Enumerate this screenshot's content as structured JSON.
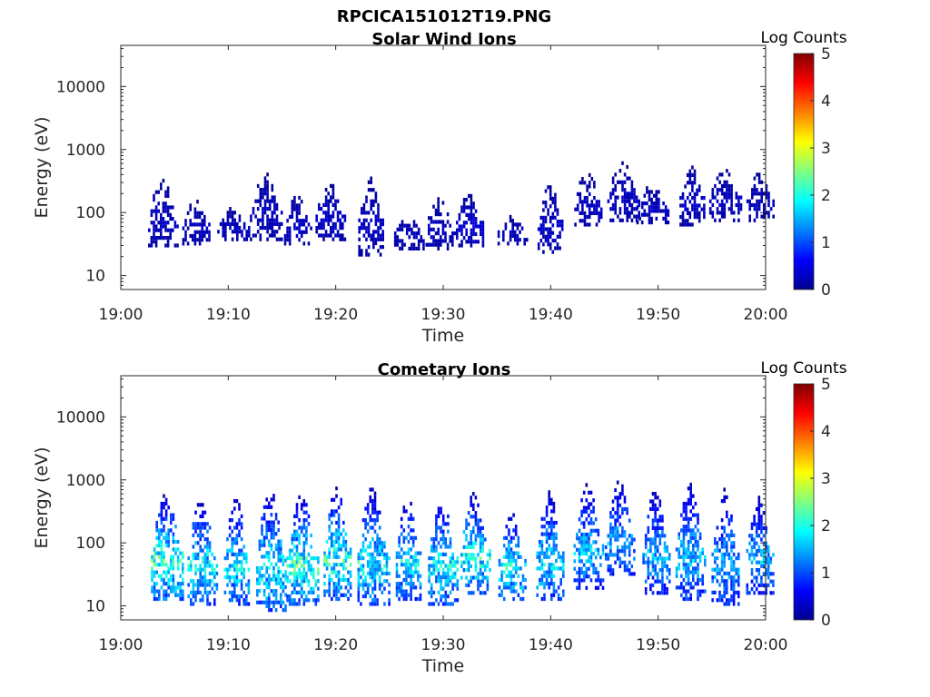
{
  "figure_title": "RPCICA151012T19.PNG",
  "colormap": [
    "#00008f",
    "#0000ff",
    "#0080ff",
    "#00ffff",
    "#80ff80",
    "#ffff00",
    "#ff8000",
    "#ff0000",
    "#800000"
  ],
  "chart_data": [
    {
      "type": "heatmap",
      "title": "Solar Wind Ions",
      "xlabel": "Time",
      "ylabel": "Energy (eV)",
      "x_ticks": [
        "19:00",
        "19:10",
        "19:20",
        "19:30",
        "19:40",
        "19:50",
        "20:00"
      ],
      "xlim": [
        "19:00",
        "20:00"
      ],
      "y_scale": "log",
      "ylim": [
        6,
        45000
      ],
      "y_ticks": [
        "10",
        "100",
        "1000",
        "10000"
      ],
      "colorbar": {
        "label": "Log Counts",
        "range": [
          0,
          5
        ],
        "ticks": [
          "0",
          "1",
          "2",
          "3",
          "4",
          "5"
        ]
      },
      "bursts": [
        {
          "time_min": 4.0,
          "emin": 28,
          "emax": 330,
          "peak_log": 0.3
        },
        {
          "time_min": 7.0,
          "emin": 30,
          "emax": 150,
          "peak_log": 0.3
        },
        {
          "time_min": 10.5,
          "emin": 35,
          "emax": 110,
          "peak_log": 0.3
        },
        {
          "time_min": 13.5,
          "emin": 35,
          "emax": 400,
          "peak_log": 0.3
        },
        {
          "time_min": 16.5,
          "emin": 30,
          "emax": 170,
          "peak_log": 0.35
        },
        {
          "time_min": 19.5,
          "emin": 35,
          "emax": 280,
          "peak_log": 0.35
        },
        {
          "time_min": 23.3,
          "emin": 20,
          "emax": 350,
          "peak_log": 0.3
        },
        {
          "time_min": 26.8,
          "emin": 25,
          "emax": 90,
          "peak_log": 0.3
        },
        {
          "time_min": 29.8,
          "emin": 25,
          "emax": 160,
          "peak_log": 0.3
        },
        {
          "time_min": 32.5,
          "emin": 28,
          "emax": 200,
          "peak_log": 0.4
        },
        {
          "time_min": 36.5,
          "emin": 30,
          "emax": 80,
          "peak_log": 0.3
        },
        {
          "time_min": 40.0,
          "emin": 22,
          "emax": 300,
          "peak_log": 0.35
        },
        {
          "time_min": 43.5,
          "emin": 60,
          "emax": 450,
          "peak_log": 0.3
        },
        {
          "time_min": 46.8,
          "emin": 70,
          "emax": 600,
          "peak_log": 0.3
        },
        {
          "time_min": 49.5,
          "emin": 65,
          "emax": 260,
          "peak_log": 0.3
        },
        {
          "time_min": 53.2,
          "emin": 60,
          "emax": 550,
          "peak_log": 0.35
        },
        {
          "time_min": 56.3,
          "emin": 70,
          "emax": 500,
          "peak_log": 0.3
        },
        {
          "time_min": 59.5,
          "emin": 70,
          "emax": 400,
          "peak_log": 0.3
        }
      ]
    },
    {
      "type": "heatmap",
      "title": "Cometary Ions",
      "xlabel": "Time",
      "ylabel": "Energy (eV)",
      "x_ticks": [
        "19:00",
        "19:10",
        "19:20",
        "19:30",
        "19:40",
        "19:50",
        "20:00"
      ],
      "xlim": [
        "19:00",
        "20:00"
      ],
      "y_scale": "log",
      "ylim": [
        6,
        45000
      ],
      "y_ticks": [
        "10",
        "100",
        "1000",
        "10000"
      ],
      "colorbar": {
        "label": "Log Counts",
        "range": [
          0,
          5
        ],
        "ticks": [
          "0",
          "1",
          "2",
          "3",
          "4",
          "5"
        ]
      },
      "bursts": [
        {
          "time_min": 4.3,
          "emin": 12,
          "emax": 600,
          "peak_log": 2.3
        },
        {
          "time_min": 7.6,
          "emin": 10,
          "emax": 500,
          "peak_log": 2.0
        },
        {
          "time_min": 10.8,
          "emin": 10,
          "emax": 500,
          "peak_log": 1.9
        },
        {
          "time_min": 14.0,
          "emin": 8,
          "emax": 700,
          "peak_log": 2.0
        },
        {
          "time_min": 17.0,
          "emin": 10,
          "emax": 550,
          "peak_log": 2.3
        },
        {
          "time_min": 20.2,
          "emin": 12,
          "emax": 700,
          "peak_log": 2.2
        },
        {
          "time_min": 23.5,
          "emin": 10,
          "emax": 700,
          "peak_log": 2.0
        },
        {
          "time_min": 26.8,
          "emin": 12,
          "emax": 500,
          "peak_log": 1.9
        },
        {
          "time_min": 30.0,
          "emin": 10,
          "emax": 500,
          "peak_log": 2.0
        },
        {
          "time_min": 33.0,
          "emin": 15,
          "emax": 600,
          "peak_log": 2.1
        },
        {
          "time_min": 36.5,
          "emin": 12,
          "emax": 300,
          "peak_log": 2.0
        },
        {
          "time_min": 40.0,
          "emin": 12,
          "emax": 600,
          "peak_log": 1.9
        },
        {
          "time_min": 43.5,
          "emin": 18,
          "emax": 800,
          "peak_log": 1.7
        },
        {
          "time_min": 46.5,
          "emin": 30,
          "emax": 900,
          "peak_log": 1.6
        },
        {
          "time_min": 49.8,
          "emin": 15,
          "emax": 700,
          "peak_log": 1.6
        },
        {
          "time_min": 53.0,
          "emin": 12,
          "emax": 900,
          "peak_log": 1.7
        },
        {
          "time_min": 56.3,
          "emin": 10,
          "emax": 700,
          "peak_log": 1.6
        },
        {
          "time_min": 59.5,
          "emin": 15,
          "emax": 500,
          "peak_log": 1.6
        }
      ]
    }
  ]
}
